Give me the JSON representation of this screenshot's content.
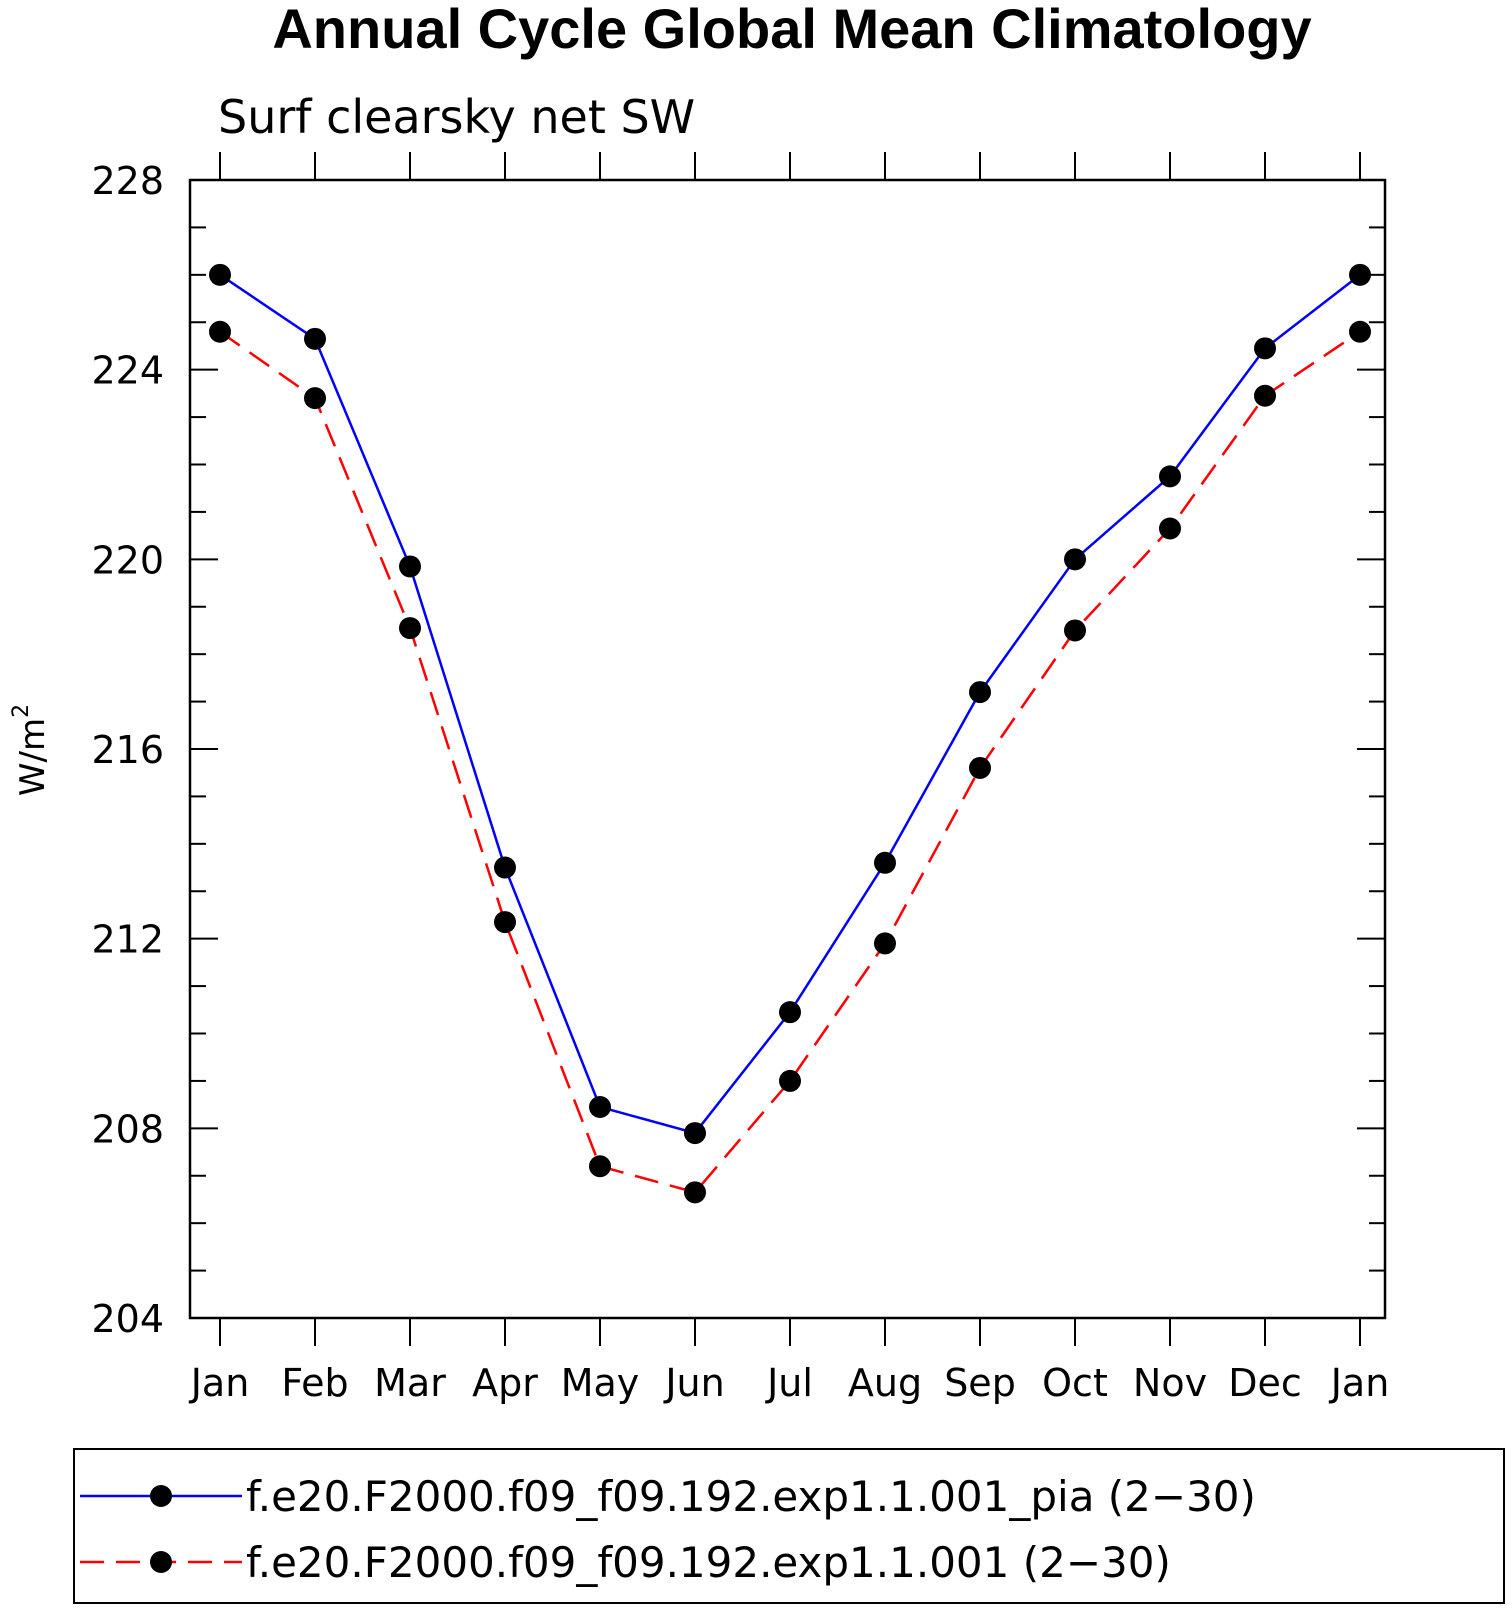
{
  "chart_data": {
    "type": "line",
    "title": "Annual Cycle Global Mean Climatology",
    "subtitle": "Surf clearsky net SW",
    "xlabel": "",
    "ylabel": "W/m",
    "ylabel_superscript": "2",
    "categories": [
      "Jan",
      "Feb",
      "Mar",
      "Apr",
      "May",
      "Jun",
      "Jul",
      "Aug",
      "Sep",
      "Oct",
      "Nov",
      "Dec",
      "Jan"
    ],
    "ylim": [
      204,
      228
    ],
    "yticks": [
      "204",
      "208",
      "212",
      "216",
      "220",
      "224",
      "228"
    ],
    "grid": false,
    "legend_position": "bottom",
    "series": [
      {
        "name": "f.e20.F2000.f09_f09.192.exp1.1.001_pia (2−30)",
        "color": "#0000ff",
        "dash": "solid",
        "marker": "filled-circle",
        "values": [
          226.0,
          224.65,
          219.85,
          213.5,
          208.45,
          207.9,
          210.45,
          213.6,
          217.2,
          220.0,
          221.75,
          224.45,
          226.0
        ]
      },
      {
        "name": "f.e20.F2000.f09_f09.192.exp1.1.001 (2−30)",
        "color": "#ff0000",
        "dash": "dashed",
        "marker": "filled-circle",
        "values": [
          224.8,
          223.4,
          218.55,
          212.35,
          207.2,
          206.65,
          209.0,
          211.9,
          215.6,
          218.5,
          220.65,
          223.45,
          224.8
        ]
      }
    ]
  }
}
